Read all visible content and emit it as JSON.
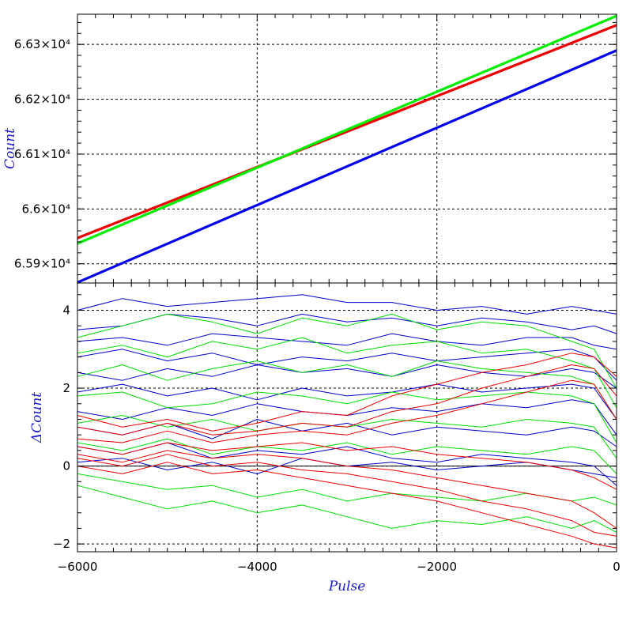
{
  "chart_data": [
    {
      "type": "line",
      "panel": "top",
      "xlabel": "",
      "ylabel": "Count",
      "xlim": [
        -6000,
        0
      ],
      "ylim": [
        65865,
        66355
      ],
      "grid": true,
      "x_ticks": [
        -6000,
        -4000,
        -2000,
        0
      ],
      "y_ticks": [
        {
          "value": 65900,
          "label": "6.59×10⁴"
        },
        {
          "value": 66000,
          "label": "6.6×10⁴"
        },
        {
          "value": 66100,
          "label": "6.61×10⁴"
        },
        {
          "value": 66200,
          "label": "6.62×10⁴"
        },
        {
          "value": 66300,
          "label": "6.63×10⁴"
        }
      ],
      "series": [
        {
          "color": "#ee0000",
          "x": [
            -6000,
            0
          ],
          "y": [
            65947,
            66335
          ]
        },
        {
          "color": "#00ee00",
          "x": [
            -6000,
            0
          ],
          "y": [
            65937,
            66352
          ]
        },
        {
          "color": "#0000ee",
          "x": [
            -6000,
            0
          ],
          "y": [
            65866,
            66289
          ]
        }
      ]
    },
    {
      "type": "line",
      "panel": "bottom",
      "xlabel": "Pulse",
      "ylabel": "ΔCount",
      "xlim": [
        -6000,
        0
      ],
      "ylim": [
        -2.2,
        4.7
      ],
      "grid": true,
      "x_ticks": [
        {
          "value": -6000,
          "label": "−6000"
        },
        {
          "value": -4000,
          "label": "−4000"
        },
        {
          "value": -2000,
          "label": "−2000"
        },
        {
          "value": 0,
          "label": "0"
        }
      ],
      "y_ticks": [
        {
          "value": -2,
          "label": "−2"
        },
        {
          "value": 0,
          "label": "0"
        },
        {
          "value": 2,
          "label": "2"
        },
        {
          "value": 4,
          "label": "4"
        }
      ],
      "x": [
        -6000,
        -5500,
        -5000,
        -4500,
        -4000,
        -3500,
        -3000,
        -2500,
        -2000,
        -1500,
        -1000,
        -500,
        -250,
        0
      ],
      "series": [
        {
          "color": "#0000cc",
          "y": [
            4.0,
            4.3,
            4.1,
            4.2,
            4.3,
            4.4,
            4.2,
            4.2,
            4.0,
            4.1,
            3.9,
            4.1,
            4.0,
            3.9
          ]
        },
        {
          "color": "#0000cc",
          "y": [
            3.5,
            3.6,
            3.9,
            3.8,
            3.6,
            3.9,
            3.7,
            3.8,
            3.6,
            3.8,
            3.7,
            3.5,
            3.6,
            3.4
          ]
        },
        {
          "color": "#0000cc",
          "y": [
            3.2,
            3.3,
            3.1,
            3.4,
            3.3,
            3.2,
            3.1,
            3.4,
            3.2,
            3.1,
            3.3,
            3.3,
            3.1,
            3.0
          ]
        },
        {
          "color": "#0000cc",
          "y": [
            2.8,
            3.0,
            2.7,
            2.9,
            2.6,
            2.8,
            2.7,
            2.9,
            2.7,
            2.8,
            2.9,
            3.0,
            2.8,
            2.2
          ]
        },
        {
          "color": "#0000cc",
          "y": [
            2.4,
            2.2,
            2.5,
            2.3,
            2.6,
            2.4,
            2.5,
            2.3,
            2.6,
            2.4,
            2.3,
            2.5,
            2.4,
            2.0
          ]
        },
        {
          "color": "#0000cc",
          "y": [
            1.9,
            2.1,
            1.8,
            2.0,
            1.7,
            2.0,
            1.8,
            1.9,
            2.1,
            1.9,
            2.0,
            2.1,
            2.0,
            1.2
          ]
        },
        {
          "color": "#0000cc",
          "y": [
            1.4,
            1.2,
            1.5,
            1.3,
            1.6,
            1.4,
            1.3,
            1.5,
            1.4,
            1.6,
            1.5,
            1.7,
            1.6,
            0.8
          ]
        },
        {
          "color": "#0000cc",
          "y": [
            1.0,
            0.8,
            1.1,
            0.7,
            1.2,
            0.9,
            1.1,
            0.8,
            1.0,
            0.9,
            0.8,
            1.0,
            0.9,
            0.5
          ]
        },
        {
          "color": "#0000cc",
          "y": [
            0.5,
            0.3,
            0.6,
            0.2,
            0.4,
            0.3,
            0.5,
            0.2,
            0.1,
            0.3,
            0.2,
            0.1,
            0.0,
            -0.5
          ]
        },
        {
          "color": "#0000cc",
          "y": [
            0.1,
            0.2,
            -0.1,
            0.1,
            -0.2,
            0.2,
            0.0,
            0.1,
            -0.1,
            0.0,
            0.1,
            -0.1,
            -0.2,
            -0.3
          ]
        },
        {
          "color": "#00dd00",
          "y": [
            3.3,
            3.6,
            3.9,
            3.7,
            3.4,
            3.8,
            3.6,
            3.9,
            3.5,
            3.7,
            3.6,
            3.2,
            3.0,
            2.0
          ]
        },
        {
          "color": "#00dd00",
          "y": [
            2.9,
            3.1,
            2.8,
            3.2,
            3.0,
            3.3,
            2.9,
            3.1,
            3.2,
            2.9,
            3.0,
            2.7,
            2.5,
            1.5
          ]
        },
        {
          "color": "#00dd00",
          "y": [
            2.3,
            2.6,
            2.2,
            2.5,
            2.7,
            2.4,
            2.6,
            2.3,
            2.7,
            2.5,
            2.4,
            2.3,
            2.1,
            1.2
          ]
        },
        {
          "color": "#00dd00",
          "y": [
            1.8,
            1.9,
            1.5,
            1.6,
            1.9,
            1.8,
            1.6,
            1.9,
            1.7,
            1.8,
            1.9,
            1.8,
            1.6,
            0.6
          ]
        },
        {
          "color": "#00dd00",
          "y": [
            1.1,
            1.3,
            1.0,
            1.2,
            0.9,
            1.1,
            1.0,
            1.2,
            1.1,
            1.0,
            1.2,
            1.1,
            1.0,
            0.2
          ]
        },
        {
          "color": "#00dd00",
          "y": [
            0.6,
            0.4,
            0.7,
            0.3,
            0.5,
            0.4,
            0.6,
            0.3,
            0.5,
            0.4,
            0.3,
            0.5,
            0.4,
            -0.2
          ]
        },
        {
          "color": "#00dd00",
          "y": [
            -0.2,
            -0.4,
            -0.6,
            -0.5,
            -0.8,
            -0.6,
            -0.9,
            -0.7,
            -0.8,
            -0.9,
            -0.7,
            -0.9,
            -0.8,
            -1.0
          ]
        },
        {
          "color": "#00dd00",
          "y": [
            -0.5,
            -0.8,
            -1.1,
            -0.9,
            -1.2,
            -1.0,
            -1.3,
            -1.6,
            -1.4,
            -1.5,
            -1.3,
            -1.6,
            -1.4,
            -1.7
          ]
        },
        {
          "color": "#ee0000",
          "y": [
            1.3,
            1.0,
            1.2,
            0.9,
            1.1,
            1.4,
            1.3,
            1.8,
            2.1,
            2.4,
            2.6,
            2.9,
            2.8,
            2.3
          ]
        },
        {
          "color": "#ee0000",
          "y": [
            1.0,
            0.8,
            1.1,
            0.8,
            0.9,
            1.1,
            1.0,
            1.4,
            1.6,
            2.0,
            2.3,
            2.6,
            2.5,
            1.8
          ]
        },
        {
          "color": "#ee0000",
          "y": [
            0.7,
            0.6,
            0.9,
            0.6,
            0.8,
            0.9,
            0.8,
            1.1,
            1.3,
            1.6,
            1.9,
            2.2,
            2.1,
            1.2
          ]
        },
        {
          "color": "#ee0000",
          "y": [
            0.5,
            0.3,
            0.6,
            0.4,
            0.5,
            0.6,
            0.4,
            0.5,
            0.3,
            0.2,
            0.1,
            -0.1,
            -0.3,
            -0.6
          ]
        },
        {
          "color": "#ee0000",
          "y": [
            0.3,
            0.1,
            0.4,
            0.2,
            0.3,
            0.2,
            0.0,
            -0.1,
            -0.3,
            -0.5,
            -0.7,
            -0.9,
            -1.2,
            -1.6
          ]
        },
        {
          "color": "#ee0000",
          "y": [
            0.2,
            0.0,
            0.3,
            0.0,
            0.1,
            -0.1,
            -0.2,
            -0.4,
            -0.6,
            -0.9,
            -1.1,
            -1.4,
            -1.7,
            -1.8
          ]
        },
        {
          "color": "#ee0000",
          "y": [
            0.0,
            -0.2,
            0.1,
            -0.2,
            -0.1,
            -0.3,
            -0.5,
            -0.7,
            -0.9,
            -1.2,
            -1.5,
            -1.8,
            -2.0,
            -2.1
          ]
        }
      ]
    }
  ]
}
